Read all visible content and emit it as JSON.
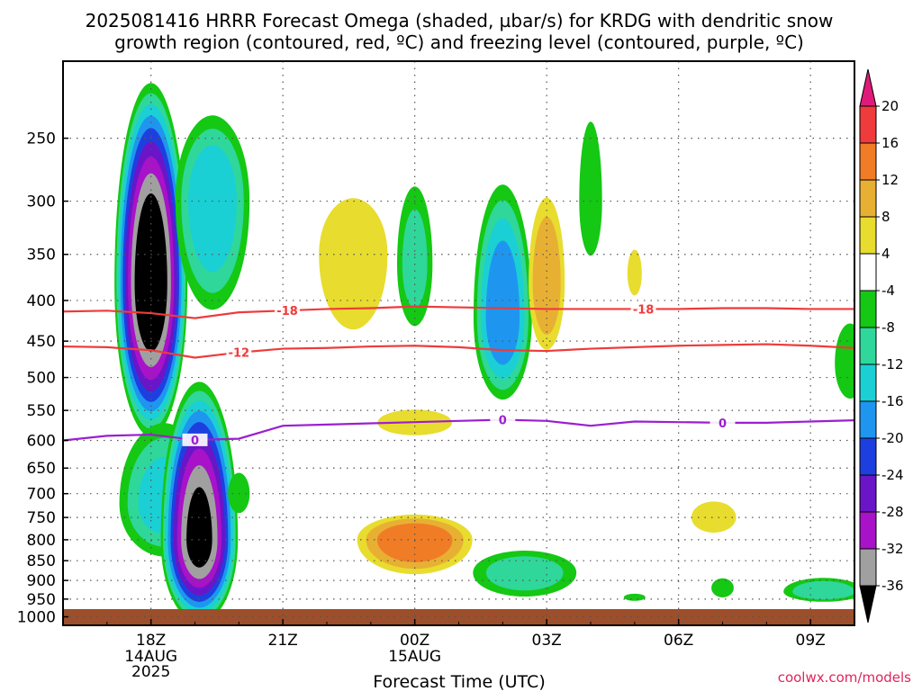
{
  "chart_data": {
    "type": "heatmap",
    "title": "2025081416 HRRR Forecast Omega (shaded, µbar/s) for KRDG with dendritic snow",
    "subtitle": "growth region (contoured, red, ºC) and freezing level (contoured, purple, ºC)",
    "xlabel": "Forecast Time (UTC)",
    "ylabel": "",
    "x_ticks": [
      {
        "h": 18,
        "label": "18Z",
        "sub": [
          "14AUG",
          "2025"
        ]
      },
      {
        "h": 21,
        "label": "21Z",
        "sub": []
      },
      {
        "h": 24,
        "label": "00Z",
        "sub": [
          "15AUG"
        ]
      },
      {
        "h": 27,
        "label": "03Z",
        "sub": []
      },
      {
        "h": 30,
        "label": "06Z",
        "sub": []
      },
      {
        "h": 33,
        "label": "09Z",
        "sub": []
      }
    ],
    "xlim": [
      16,
      34
    ],
    "y_ticks": [
      250,
      300,
      350,
      400,
      450,
      500,
      550,
      600,
      650,
      700,
      750,
      800,
      850,
      900,
      950,
      1000
    ],
    "y_scale": "log",
    "ylim_hPa": [
      1025,
      200
    ],
    "colorbar": {
      "labels": [
        "20",
        "16",
        "12",
        "8",
        "4",
        "-4",
        "-8",
        "-12",
        "-16",
        "-20",
        "-24",
        "-28",
        "-32",
        "-36"
      ],
      "colors": [
        "#e01a7a",
        "#ef3b3b",
        "#f07d25",
        "#e8b033",
        "#e8dc2e",
        "#ffffff",
        "#14c814",
        "#2fd79a",
        "#1ad0d4",
        "#1e96ef",
        "#1e3fe0",
        "#6a15c8",
        "#a812c8",
        "#a0a0a0",
        "#000000"
      ]
    },
    "contours": [
      {
        "name": "",
        "kind": "dgz",
        "value": -18,
        "label": "-18",
        "color": "#ee3b3b",
        "points": [
          [
            16.0,
            413
          ],
          [
            17.0,
            412
          ],
          [
            18.0,
            415
          ],
          [
            19.0,
            421
          ],
          [
            20.0,
            414
          ],
          [
            21.0,
            412
          ],
          [
            22.0,
            410
          ],
          [
            23.0,
            409
          ],
          [
            24.0,
            407
          ],
          [
            25.0,
            408
          ],
          [
            26.0,
            409
          ],
          [
            27.0,
            410
          ],
          [
            28.0,
            410
          ],
          [
            29.0,
            410
          ],
          [
            30.0,
            410
          ],
          [
            31.0,
            409
          ],
          [
            32.0,
            409
          ],
          [
            33.0,
            410
          ],
          [
            34.0,
            410
          ]
        ]
      },
      {
        "name": "",
        "kind": "dgz",
        "value": -12,
        "label": "-12",
        "color": "#ee3b3b",
        "points": [
          [
            16.0,
            457
          ],
          [
            17.0,
            458
          ],
          [
            18.0,
            462
          ],
          [
            19.0,
            472
          ],
          [
            20.0,
            465
          ],
          [
            21.0,
            460
          ],
          [
            22.0,
            459
          ],
          [
            23.0,
            457
          ],
          [
            24.0,
            456
          ],
          [
            25.0,
            458
          ],
          [
            26.0,
            462
          ],
          [
            27.0,
            463
          ],
          [
            28.0,
            460
          ],
          [
            29.0,
            458
          ],
          [
            30.0,
            456
          ],
          [
            31.0,
            455
          ],
          [
            32.0,
            454
          ],
          [
            33.0,
            456
          ],
          [
            34.0,
            459
          ]
        ]
      },
      {
        "name": "",
        "kind": "freezing",
        "value": 0,
        "label": "0",
        "color": "#9b1fd0",
        "points": [
          [
            16.0,
            600
          ],
          [
            17.0,
            592
          ],
          [
            18.0,
            590
          ],
          [
            19.0,
            599
          ],
          [
            20.0,
            597
          ],
          [
            21.0,
            575
          ],
          [
            22.0,
            573
          ],
          [
            23.0,
            571
          ],
          [
            24.0,
            569
          ],
          [
            25.0,
            567
          ],
          [
            26.0,
            565
          ],
          [
            27.0,
            567
          ],
          [
            28.0,
            575
          ],
          [
            29.0,
            568
          ],
          [
            30.0,
            569
          ],
          [
            31.0,
            570
          ],
          [
            32.0,
            570
          ],
          [
            33.0,
            568
          ],
          [
            34.0,
            566
          ]
        ]
      }
    ],
    "omega_features": [
      {
        "sign": "up",
        "h": 18.0,
        "p": 380,
        "rh": 0.85,
        "rp_top": 170,
        "rp_bot": 220,
        "peak": -40
      },
      {
        "sign": "up",
        "h": 18.3,
        "p": 720,
        "rh": 1.1,
        "rp_top": 160,
        "rp_bot": 130,
        "peak": -12
      },
      {
        "sign": "up",
        "h": 19.1,
        "p": 800,
        "rh": 0.9,
        "rp_top": 300,
        "rp_bot": 400,
        "peak": -36
      },
      {
        "sign": "up",
        "h": 19.4,
        "p": 300,
        "rh": 0.9,
        "rp_top": 70,
        "rp_bot": 120,
        "peak": -14
      },
      {
        "sign": "up",
        "h": 20.0,
        "p": 700,
        "rh": 0.3,
        "rp_top": 50,
        "rp_bot": 50,
        "peak": -4
      },
      {
        "sign": "down",
        "h": 22.6,
        "p": 350,
        "rh": 0.9,
        "rp_top": 60,
        "rp_bot": 100,
        "peak": 6
      },
      {
        "sign": "down",
        "h": 24.0,
        "p": 570,
        "rh": 1.0,
        "rp_top": 25,
        "rp_bot": 25,
        "peak": 5
      },
      {
        "sign": "down",
        "h": 24.0,
        "p": 800,
        "rh": 1.4,
        "rp_top": 60,
        "rp_bot": 90,
        "peak": 14
      },
      {
        "sign": "up",
        "h": 24.0,
        "p": 360,
        "rh": 0.45,
        "rp_top": 80,
        "rp_bot": 80,
        "peak": -8
      },
      {
        "sign": "up",
        "h": 26.0,
        "p": 420,
        "rh": 0.7,
        "rp_top": 140,
        "rp_bot": 120,
        "peak": -18
      },
      {
        "sign": "up",
        "h": 26.5,
        "p": 880,
        "rh": 1.3,
        "rp_top": 60,
        "rp_bot": 70,
        "peak": -9
      },
      {
        "sign": "down",
        "h": 27.0,
        "p": 380,
        "rh": 0.45,
        "rp_top": 90,
        "rp_bot": 90,
        "peak": 10
      },
      {
        "sign": "up",
        "h": 28.0,
        "p": 300,
        "rh": 0.3,
        "rp_top": 70,
        "rp_bot": 60,
        "peak": -6
      },
      {
        "sign": "down",
        "h": 29.0,
        "p": 370,
        "rh": 0.2,
        "rp_top": 30,
        "rp_bot": 30,
        "peak": 4
      },
      {
        "sign": "up",
        "h": 29.0,
        "p": 945,
        "rh": 0.3,
        "rp_top": 12,
        "rp_bot": 12,
        "peak": -4
      },
      {
        "sign": "down",
        "h": 30.8,
        "p": 750,
        "rh": 0.6,
        "rp_top": 40,
        "rp_bot": 40,
        "peak": 5
      },
      {
        "sign": "up",
        "h": 31.0,
        "p": 920,
        "rh": 0.3,
        "rp_top": 30,
        "rp_bot": 30,
        "peak": -5
      },
      {
        "sign": "up",
        "h": 33.3,
        "p": 930,
        "rh": 1.0,
        "rp_top": 40,
        "rp_bot": 30,
        "peak": -10
      },
      {
        "sign": "up",
        "h": 33.9,
        "p": 480,
        "rh": 0.4,
        "rp_top": 60,
        "rp_bot": 60,
        "peak": -6
      }
    ]
  },
  "footer": {
    "xlabel": "Forecast Time (UTC)",
    "credit": "coolwx.com/models"
  }
}
